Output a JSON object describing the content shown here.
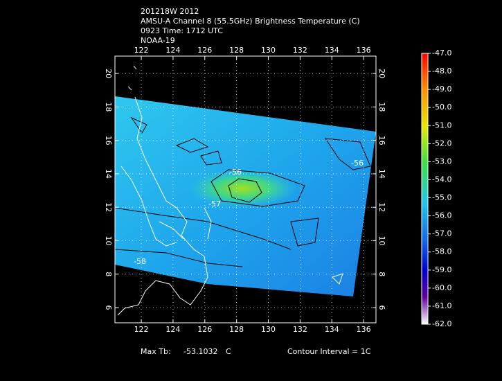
{
  "header": {
    "lines": [
      "201218W 2012",
      "AMSU-A Channel 8 (55.5GHz) Brightness Temperature (C)",
      "0923 Time: 1712 UTC",
      "NOAA-19"
    ]
  },
  "map": {
    "xlim": [
      120.34,
      136.78
    ],
    "ylim": [
      5.09,
      21.04
    ],
    "xticks": [
      122,
      124,
      126,
      128,
      130,
      132,
      134,
      136
    ],
    "yticks": [
      6,
      8,
      10,
      12,
      14,
      16,
      18,
      20
    ],
    "contour_labels": [
      "-56",
      "-57",
      "-56",
      "-58"
    ]
  },
  "colorbar": {
    "lim": [
      -62,
      -47
    ],
    "ticks": [
      {
        "value": -47,
        "label": "-47.0"
      },
      {
        "value": -48,
        "label": "-48.0"
      },
      {
        "value": -49,
        "label": "-49.0"
      },
      {
        "value": -50,
        "label": "-50.0"
      },
      {
        "value": -51,
        "label": "-51.0"
      },
      {
        "value": -52,
        "label": "-52.0"
      },
      {
        "value": -53,
        "label": "-53.0"
      },
      {
        "value": -54,
        "label": "-54.0"
      },
      {
        "value": -55,
        "label": "-55.0"
      },
      {
        "value": -56,
        "label": "-56.0"
      },
      {
        "value": -57,
        "label": "-57.0"
      },
      {
        "value": -58,
        "label": "-58.0"
      },
      {
        "value": -59,
        "label": "-59.0"
      },
      {
        "value": -60,
        "label": "-60.0"
      },
      {
        "value": -61,
        "label": "-61.0"
      },
      {
        "value": -62,
        "label": "-62.0"
      }
    ]
  },
  "footer": {
    "max_label": "Max Tb:",
    "max_value": "-53.1032",
    "max_unit": "C",
    "contour_interval": "Contour Interval = 1C"
  }
}
